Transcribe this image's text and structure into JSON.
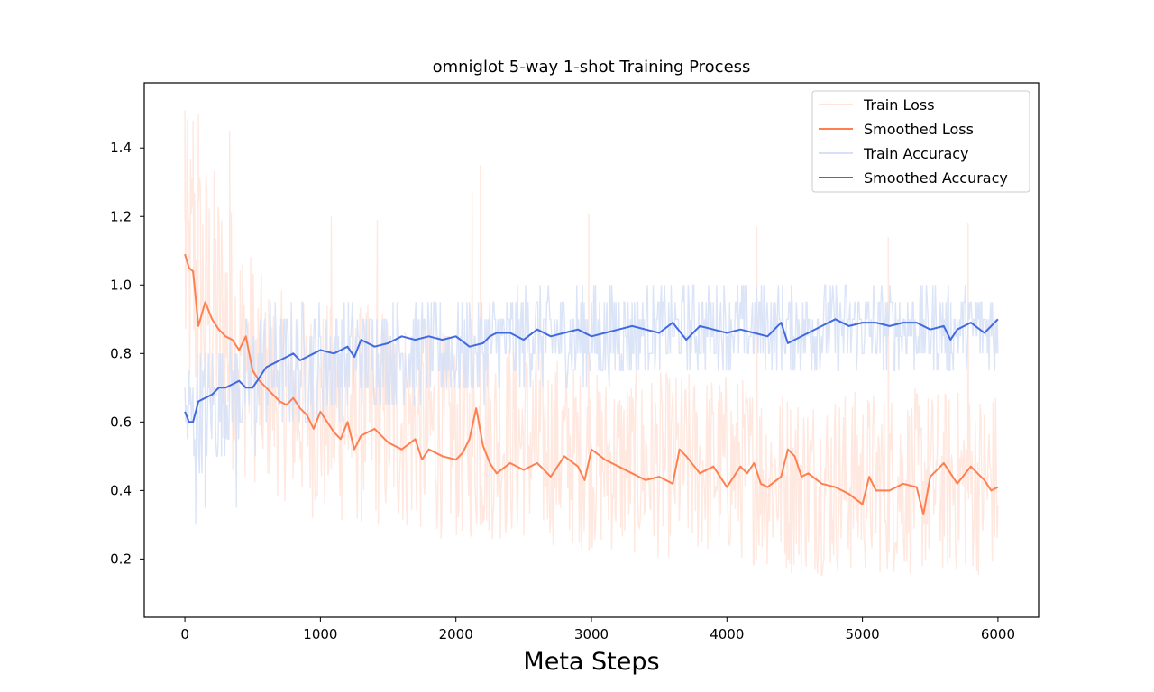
{
  "chart_data": {
    "type": "line",
    "title": "omniglot 5-way 1-shot Training Process",
    "xlabel": "Meta Steps",
    "ylabel": "",
    "xlim": [
      -300,
      6300
    ],
    "ylim": [
      0.03,
      1.59
    ],
    "xticks": [
      0,
      1000,
      2000,
      3000,
      4000,
      5000,
      6000
    ],
    "xtick_labels": [
      "0",
      "1000",
      "2000",
      "3000",
      "4000",
      "5000",
      "6000"
    ],
    "yticks": [
      0.2,
      0.4,
      0.6,
      0.8,
      1.0,
      1.2,
      1.4
    ],
    "ytick_labels": [
      "0.2",
      "0.4",
      "0.6",
      "0.8",
      "1.0",
      "1.2",
      "1.4"
    ],
    "grid": false,
    "legend_position": "upper-right",
    "series": [
      {
        "name": "Train Loss",
        "color": "#ffe4d9",
        "style": "noisy-band",
        "x_range": [
          0,
          6000
        ],
        "band_low": [
          0.6,
          0.45,
          0.4,
          0.3,
          0.28,
          0.25,
          0.25,
          0.22,
          0.2,
          0.2,
          0.15,
          0.15,
          0.15
        ],
        "band_high": [
          1.5,
          1.3,
          1.0,
          0.95,
          0.95,
          0.85,
          0.85,
          0.75,
          0.75,
          0.75,
          0.7,
          0.7,
          0.7
        ],
        "band_x": [
          0,
          300,
          600,
          1000,
          1500,
          2000,
          2500,
          3000,
          3500,
          4000,
          4500,
          5000,
          6000
        ],
        "spikes": [
          [
            0,
            1.51
          ],
          [
            60,
            1.48
          ],
          [
            100,
            1.5
          ],
          [
            330,
            1.45
          ],
          [
            1080,
            1.2
          ],
          [
            1420,
            1.19
          ],
          [
            2120,
            1.27
          ],
          [
            2180,
            1.35
          ],
          [
            2980,
            1.21
          ],
          [
            4220,
            1.17
          ],
          [
            5190,
            1.14
          ],
          [
            5780,
            1.18
          ]
        ]
      },
      {
        "name": "Smoothed Loss",
        "color": "#ff7f50",
        "style": "line",
        "x": [
          0,
          30,
          60,
          100,
          150,
          200,
          250,
          300,
          350,
          400,
          450,
          500,
          550,
          600,
          650,
          700,
          750,
          800,
          850,
          900,
          950,
          1000,
          1100,
          1150,
          1200,
          1250,
          1300,
          1400,
          1500,
          1600,
          1700,
          1750,
          1800,
          1900,
          2000,
          2050,
          2100,
          2150,
          2200,
          2250,
          2300,
          2400,
          2500,
          2600,
          2700,
          2800,
          2900,
          2950,
          3000,
          3100,
          3200,
          3300,
          3400,
          3500,
          3600,
          3650,
          3700,
          3800,
          3900,
          4000,
          4100,
          4150,
          4200,
          4250,
          4300,
          4400,
          4450,
          4500,
          4550,
          4600,
          4700,
          4800,
          4850,
          4900,
          5000,
          5050,
          5100,
          5200,
          5300,
          5400,
          5450,
          5500,
          5600,
          5650,
          5700,
          5800,
          5900,
          5950,
          6000
        ],
        "y": [
          1.09,
          1.05,
          1.04,
          0.88,
          0.95,
          0.9,
          0.87,
          0.85,
          0.84,
          0.81,
          0.85,
          0.75,
          0.72,
          0.7,
          0.68,
          0.66,
          0.65,
          0.67,
          0.64,
          0.62,
          0.58,
          0.63,
          0.57,
          0.55,
          0.6,
          0.52,
          0.56,
          0.58,
          0.54,
          0.52,
          0.55,
          0.49,
          0.52,
          0.5,
          0.49,
          0.51,
          0.55,
          0.64,
          0.53,
          0.48,
          0.45,
          0.48,
          0.46,
          0.48,
          0.44,
          0.5,
          0.47,
          0.43,
          0.52,
          0.49,
          0.47,
          0.45,
          0.43,
          0.44,
          0.42,
          0.52,
          0.5,
          0.45,
          0.47,
          0.41,
          0.47,
          0.45,
          0.48,
          0.42,
          0.41,
          0.44,
          0.52,
          0.5,
          0.44,
          0.45,
          0.42,
          0.41,
          0.4,
          0.39,
          0.36,
          0.44,
          0.4,
          0.4,
          0.42,
          0.41,
          0.33,
          0.44,
          0.48,
          0.45,
          0.42,
          0.47,
          0.43,
          0.4,
          0.41
        ]
      },
      {
        "name": "Train Accuracy",
        "color": "#d6e1f7",
        "style": "noisy-band",
        "x_range": [
          0,
          6000
        ],
        "band_low": [
          0.4,
          0.5,
          0.55,
          0.6,
          0.65,
          0.65,
          0.7,
          0.7,
          0.75,
          0.75,
          0.75,
          0.75,
          0.75
        ],
        "band_high": [
          0.8,
          0.85,
          0.95,
          0.95,
          0.95,
          0.95,
          1.0,
          1.0,
          1.0,
          1.0,
          1.0,
          1.0,
          1.0
        ],
        "band_x": [
          0,
          300,
          600,
          1000,
          1500,
          2000,
          2500,
          3000,
          3500,
          4000,
          4500,
          5000,
          6000
        ],
        "spikes": [
          [
            80,
            0.3
          ],
          [
            150,
            0.35
          ],
          [
            380,
            0.35
          ],
          [
            520,
            0.5
          ]
        ]
      },
      {
        "name": "Smoothed Accuracy",
        "color": "#4169e1",
        "style": "line",
        "x": [
          0,
          30,
          60,
          100,
          150,
          200,
          250,
          300,
          350,
          400,
          450,
          500,
          550,
          600,
          650,
          700,
          750,
          800,
          850,
          900,
          950,
          1000,
          1100,
          1200,
          1250,
          1300,
          1400,
          1500,
          1600,
          1700,
          1800,
          1900,
          2000,
          2100,
          2200,
          2250,
          2300,
          2400,
          2500,
          2600,
          2700,
          2800,
          2900,
          3000,
          3100,
          3200,
          3300,
          3400,
          3500,
          3600,
          3700,
          3800,
          3900,
          4000,
          4100,
          4200,
          4300,
          4400,
          4450,
          4500,
          4600,
          4700,
          4800,
          4900,
          5000,
          5100,
          5200,
          5300,
          5400,
          5500,
          5600,
          5650,
          5700,
          5800,
          5900,
          6000
        ],
        "y": [
          0.63,
          0.6,
          0.6,
          0.66,
          0.67,
          0.68,
          0.7,
          0.7,
          0.71,
          0.72,
          0.7,
          0.7,
          0.73,
          0.76,
          0.77,
          0.78,
          0.79,
          0.8,
          0.78,
          0.79,
          0.8,
          0.81,
          0.8,
          0.82,
          0.79,
          0.84,
          0.82,
          0.83,
          0.85,
          0.84,
          0.85,
          0.84,
          0.85,
          0.82,
          0.83,
          0.85,
          0.86,
          0.86,
          0.84,
          0.87,
          0.85,
          0.86,
          0.87,
          0.85,
          0.86,
          0.87,
          0.88,
          0.87,
          0.86,
          0.89,
          0.84,
          0.88,
          0.87,
          0.86,
          0.87,
          0.86,
          0.85,
          0.89,
          0.83,
          0.84,
          0.86,
          0.88,
          0.9,
          0.88,
          0.89,
          0.89,
          0.88,
          0.89,
          0.89,
          0.87,
          0.88,
          0.84,
          0.87,
          0.89,
          0.86,
          0.9
        ]
      }
    ]
  }
}
